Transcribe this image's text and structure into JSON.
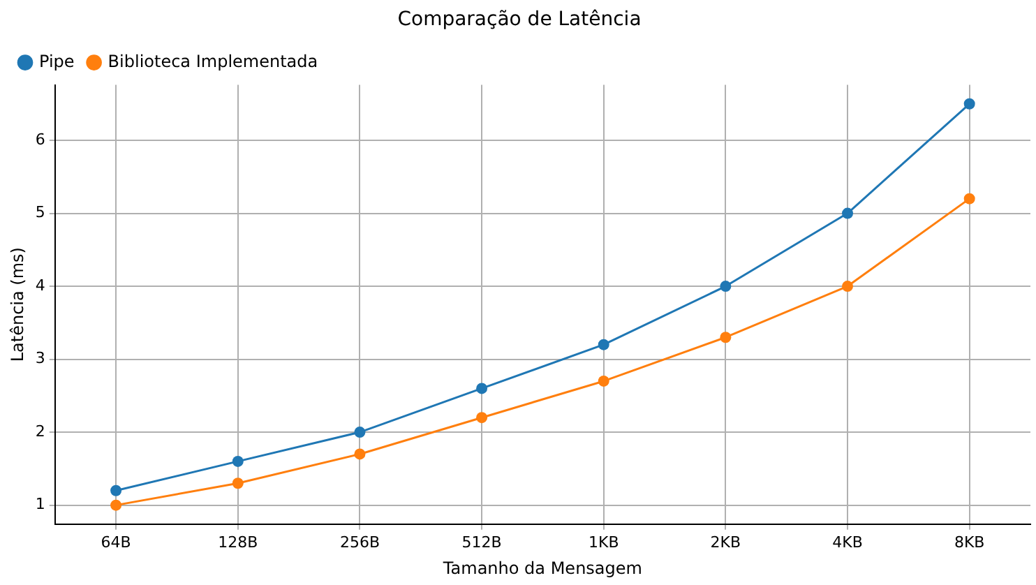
{
  "chart_data": {
    "type": "line",
    "title": "Comparação de Latência",
    "xlabel": "Tamanho da Mensagem",
    "ylabel": "Latência (ms)",
    "categories": [
      "64B",
      "128B",
      "256B",
      "512B",
      "1KB",
      "2KB",
      "4KB",
      "8KB"
    ],
    "series": [
      {
        "name": "Pipe",
        "color": "#1f77b4",
        "values": [
          1.2,
          1.6,
          2.0,
          2.6,
          3.2,
          4.0,
          5.0,
          6.5
        ]
      },
      {
        "name": "Biblioteca Implementada",
        "color": "#ff7f0e",
        "values": [
          1.0,
          1.3,
          1.7,
          2.2,
          2.7,
          3.3,
          4.0,
          5.2
        ]
      }
    ],
    "ylim": [
      0.74,
      6.76
    ],
    "yticks": [
      1,
      2,
      3,
      4,
      5,
      6
    ],
    "grid": true,
    "legend": "top left",
    "marker": "circle",
    "line_style": "solid"
  }
}
